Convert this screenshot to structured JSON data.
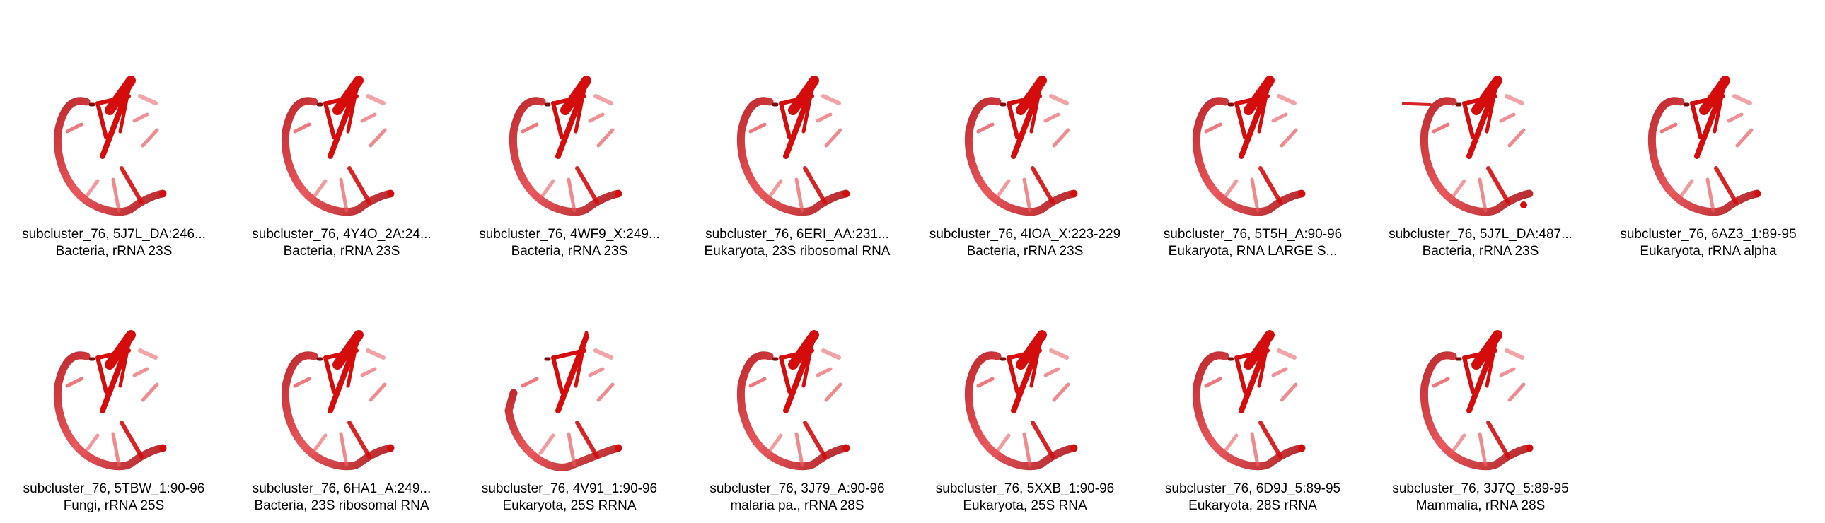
{
  "panel": {
    "structure_color": "#d40c0c",
    "backbone_color": "#e8585c",
    "items": [
      {
        "title": "subcluster_76, 5J7L_DA:246...",
        "subtitle": "Bacteria, rRNA 23S"
      },
      {
        "title": "subcluster_76, 4Y4O_2A:24...",
        "subtitle": "Bacteria, rRNA 23S"
      },
      {
        "title": "subcluster_76, 4WF9_X:249...",
        "subtitle": "Bacteria, rRNA 23S"
      },
      {
        "title": "subcluster_76, 6ERI_AA:231...",
        "subtitle": "Eukaryota, 23S ribosomal RNA"
      },
      {
        "title": "subcluster_76, 4IOA_X:223-229",
        "subtitle": "Bacteria, rRNA 23S"
      },
      {
        "title": "subcluster_76, 5T5H_A:90-96",
        "subtitle": "Eukaryota, RNA LARGE S..."
      },
      {
        "title": "subcluster_76, 5J7L_DA:487...",
        "subtitle": "Bacteria, rRNA 23S"
      },
      {
        "title": "subcluster_76, 6AZ3_1:89-95",
        "subtitle": "Eukaryota, rRNA alpha"
      },
      {
        "title": "subcluster_76, 5TBW_1:90-96",
        "subtitle": "Fungi, rRNA 25S"
      },
      {
        "title": "subcluster_76, 6HA1_A:249...",
        "subtitle": "Bacteria, 23S ribosomal RNA"
      },
      {
        "title": "subcluster_76, 4V91_1:90-96",
        "subtitle": "Eukaryota, 25S RRNA"
      },
      {
        "title": "subcluster_76, 3J79_A:90-96",
        "subtitle": "malaria pa., rRNA 28S"
      },
      {
        "title": "subcluster_76, 5XXB_1:90-96",
        "subtitle": "Eukaryota, 25S RNA"
      },
      {
        "title": "subcluster_76, 6D9J_5:89-95",
        "subtitle": "Eukaryota, 28S rRNA"
      },
      {
        "title": "subcluster_76, 3J7Q_5:89-95",
        "subtitle": "Mammalia, rRNA 28S"
      }
    ]
  }
}
